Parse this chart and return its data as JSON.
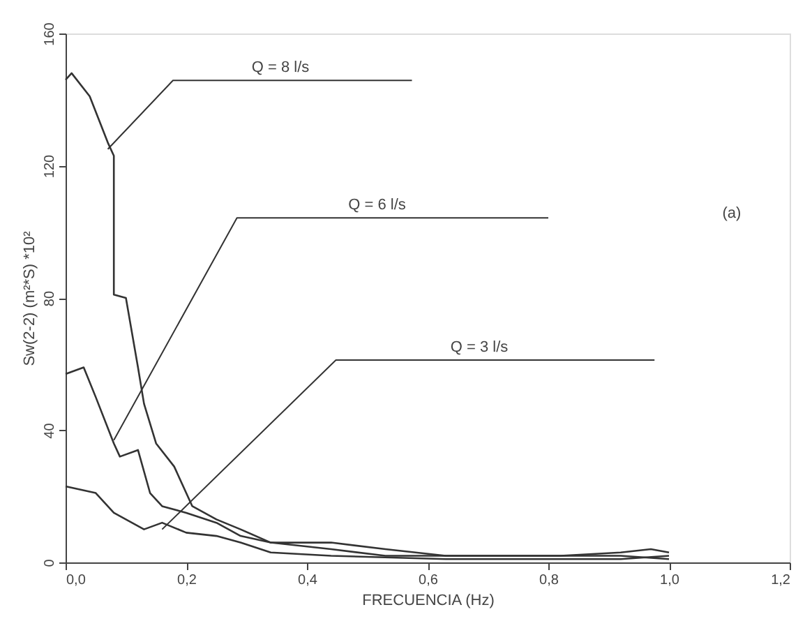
{
  "chart_data": {
    "type": "line",
    "xlabel": "FRECUENCIA (Hz)",
    "ylabel": "Sw(2-2) (m²*S) *10²",
    "xlim": [
      0,
      1.2
    ],
    "xticks": [
      {
        "value": 0,
        "label": "0,0"
      },
      {
        "value": 0.2,
        "label": "0,2"
      },
      {
        "value": 0.4,
        "label": "0,4"
      },
      {
        "value": 0.6,
        "label": "0,6"
      },
      {
        "value": 0.8,
        "label": "0,8"
      },
      {
        "value": 1.0,
        "label": "1,0"
      },
      {
        "value": 1.2,
        "label": "1,2"
      }
    ],
    "ylim": [
      0,
      160
    ],
    "yticks": [
      0,
      40,
      80,
      120,
      160
    ],
    "grid": false,
    "legend": false,
    "marker": "none",
    "line_style": "solid",
    "series": [
      {
        "color": "#333333",
        "x": [
          0,
          0.01,
          0.04,
          0.07,
          0.08,
          0.08,
          0.1,
          0.12,
          0.13,
          0.15,
          0.18,
          0.21,
          0.25,
          0.29,
          0.34,
          0.44,
          0.53,
          0.63,
          0.82,
          0.92,
          0.97,
          1.0
        ],
        "values": [
          146,
          148,
          141,
          127,
          123,
          81,
          80,
          59,
          48,
          36,
          29,
          17,
          13,
          10,
          6,
          6,
          4,
          2,
          2,
          3,
          4,
          3
        ]
      },
      {
        "color": "#333333",
        "x": [
          0,
          0.03,
          0.05,
          0.08,
          0.09,
          0.12,
          0.14,
          0.16,
          0.2,
          0.25,
          0.29,
          0.34,
          0.44,
          0.53,
          0.73,
          0.92,
          1.0
        ],
        "values": [
          57,
          59,
          50,
          36,
          32,
          34,
          21,
          17,
          15,
          12,
          8,
          6,
          4,
          2,
          2,
          2,
          1
        ]
      },
      {
        "color": "#333333",
        "x": [
          0,
          0.05,
          0.08,
          0.11,
          0.13,
          0.16,
          0.2,
          0.25,
          0.29,
          0.34,
          0.44,
          0.63,
          0.92,
          1.0
        ],
        "values": [
          23,
          21,
          15,
          12,
          10,
          12,
          9,
          8,
          6,
          3,
          2,
          1,
          1,
          2
        ]
      }
    ],
    "annotations": [
      {
        "text": "Q = 8 l/s",
        "x": 0.07,
        "y": 125
      },
      {
        "text": "Q = 6 l/s",
        "x": 0.08,
        "y": 37
      },
      {
        "text": "Q = 3 l/s",
        "x": 0.16,
        "y": 10
      },
      "(a)"
    ]
  }
}
